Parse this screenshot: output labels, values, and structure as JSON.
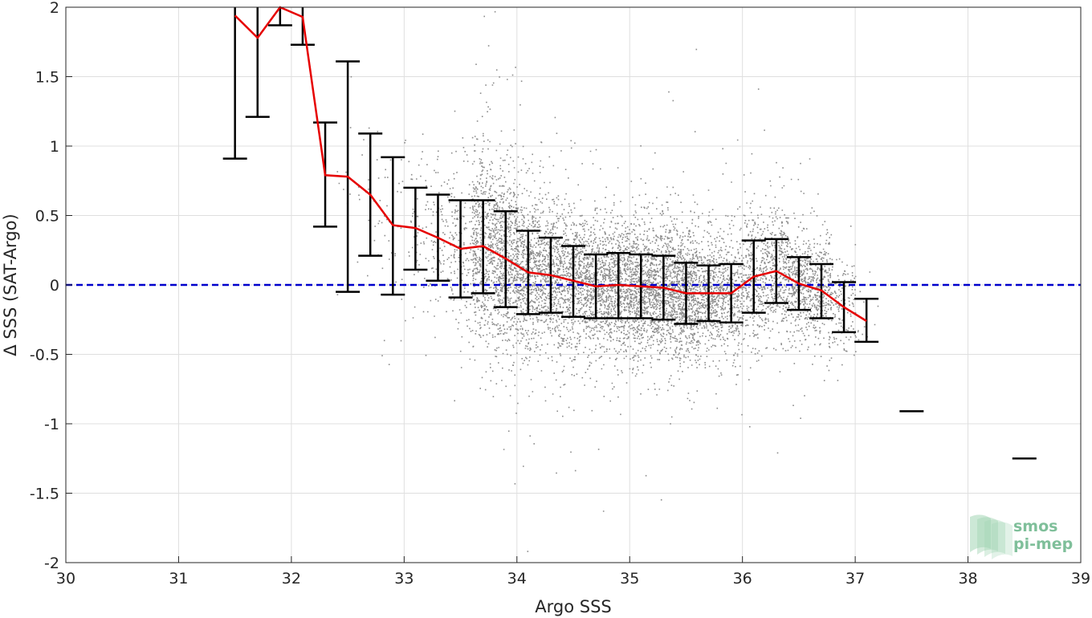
{
  "chart_data": {
    "type": "scatter",
    "xlabel": "Argo SSS",
    "ylabel": "Δ SSS (SAT-Argo)",
    "xlim": [
      30,
      39
    ],
    "ylim": [
      -2,
      2
    ],
    "xticks": [
      30,
      31,
      32,
      33,
      34,
      35,
      36,
      37,
      38,
      39
    ],
    "yticks": [
      -2,
      -1.5,
      -1,
      -0.5,
      0,
      0.5,
      1,
      1.5,
      2
    ],
    "xtick_labels": [
      "30",
      "31",
      "32",
      "33",
      "34",
      "35",
      "36",
      "37",
      "38",
      "39"
    ],
    "ytick_labels": [
      "-2",
      "-1.5",
      "-1",
      "-0.5",
      "0",
      "0.5",
      "1",
      "1.5",
      "2"
    ],
    "grid": true,
    "reference_line": {
      "y": 0,
      "style": "dashed",
      "color": "#0000cc"
    },
    "mean_line_color": "#e60000",
    "errorbar_color": "#000000",
    "scatter_color": "#8c8c8c",
    "bins": [
      {
        "x": 31.5,
        "mean": 1.94,
        "low": 0.91,
        "high": 2.0
      },
      {
        "x": 31.7,
        "mean": 1.78,
        "low": 1.21,
        "high": 2.0
      },
      {
        "x": 31.9,
        "mean": 2.0,
        "low": 1.87,
        "high": 2.0
      },
      {
        "x": 32.1,
        "mean": 1.93,
        "low": 1.73,
        "high": 2.0
      },
      {
        "x": 32.3,
        "mean": 0.79,
        "low": 0.42,
        "high": 1.17
      },
      {
        "x": 32.5,
        "mean": 0.78,
        "low": -0.05,
        "high": 1.61
      },
      {
        "x": 32.7,
        "mean": 0.65,
        "low": 0.21,
        "high": 1.09
      },
      {
        "x": 32.9,
        "mean": 0.43,
        "low": -0.07,
        "high": 0.92
      },
      {
        "x": 33.1,
        "mean": 0.41,
        "low": 0.11,
        "high": 0.7
      },
      {
        "x": 33.3,
        "mean": 0.34,
        "low": 0.03,
        "high": 0.65
      },
      {
        "x": 33.5,
        "mean": 0.26,
        "low": -0.09,
        "high": 0.61
      },
      {
        "x": 33.7,
        "mean": 0.28,
        "low": -0.06,
        "high": 0.61
      },
      {
        "x": 33.9,
        "mean": 0.19,
        "low": -0.16,
        "high": 0.53
      },
      {
        "x": 34.1,
        "mean": 0.09,
        "low": -0.21,
        "high": 0.39
      },
      {
        "x": 34.3,
        "mean": 0.07,
        "low": -0.2,
        "high": 0.34
      },
      {
        "x": 34.5,
        "mean": 0.03,
        "low": -0.23,
        "high": 0.28
      },
      {
        "x": 34.7,
        "mean": -0.01,
        "low": -0.24,
        "high": 0.22
      },
      {
        "x": 34.9,
        "mean": 0.0,
        "low": -0.24,
        "high": 0.23
      },
      {
        "x": 35.1,
        "mean": -0.01,
        "low": -0.24,
        "high": 0.22
      },
      {
        "x": 35.3,
        "mean": -0.02,
        "low": -0.25,
        "high": 0.21
      },
      {
        "x": 35.5,
        "mean": -0.06,
        "low": -0.28,
        "high": 0.16
      },
      {
        "x": 35.7,
        "mean": -0.06,
        "low": -0.26,
        "high": 0.14
      },
      {
        "x": 35.9,
        "mean": -0.06,
        "low": -0.27,
        "high": 0.15
      },
      {
        "x": 36.1,
        "mean": 0.06,
        "low": -0.2,
        "high": 0.32
      },
      {
        "x": 36.3,
        "mean": 0.1,
        "low": -0.13,
        "high": 0.33
      },
      {
        "x": 36.5,
        "mean": 0.01,
        "low": -0.18,
        "high": 0.2
      },
      {
        "x": 36.7,
        "mean": -0.04,
        "low": -0.24,
        "high": 0.15
      },
      {
        "x": 36.9,
        "mean": -0.16,
        "low": -0.34,
        "high": 0.02
      },
      {
        "x": 37.1,
        "mean": -0.26,
        "low": -0.41,
        "high": -0.1
      },
      {
        "x": 37.5,
        "mean": -0.91,
        "low": -0.91,
        "high": -0.91
      },
      {
        "x": 38.5,
        "mean": -1.25,
        "low": -1.25,
        "high": -1.25
      }
    ],
    "scatter_density": [
      {
        "x": 32.5,
        "n": 15,
        "mean": 0.9,
        "sd": 0.35
      },
      {
        "x": 32.7,
        "n": 20,
        "mean": 0.7,
        "sd": 0.3
      },
      {
        "x": 32.9,
        "n": 30,
        "mean": 0.5,
        "sd": 0.3
      },
      {
        "x": 33.1,
        "n": 60,
        "mean": 0.42,
        "sd": 0.28
      },
      {
        "x": 33.3,
        "n": 90,
        "mean": 0.35,
        "sd": 0.28
      },
      {
        "x": 33.5,
        "n": 160,
        "mean": 0.28,
        "sd": 0.28
      },
      {
        "x": 33.7,
        "n": 550,
        "mean": 0.3,
        "sd": 0.36
      },
      {
        "x": 33.9,
        "n": 620,
        "mean": 0.18,
        "sd": 0.35
      },
      {
        "x": 34.1,
        "n": 560,
        "mean": 0.09,
        "sd": 0.3
      },
      {
        "x": 34.3,
        "n": 520,
        "mean": 0.06,
        "sd": 0.28
      },
      {
        "x": 34.5,
        "n": 520,
        "mean": 0.03,
        "sd": 0.26
      },
      {
        "x": 34.7,
        "n": 560,
        "mean": 0.0,
        "sd": 0.24
      },
      {
        "x": 34.9,
        "n": 600,
        "mean": 0.0,
        "sd": 0.24
      },
      {
        "x": 35.1,
        "n": 620,
        "mean": -0.01,
        "sd": 0.24
      },
      {
        "x": 35.3,
        "n": 660,
        "mean": -0.02,
        "sd": 0.24
      },
      {
        "x": 35.5,
        "n": 660,
        "mean": -0.05,
        "sd": 0.23
      },
      {
        "x": 35.7,
        "n": 480,
        "mean": -0.05,
        "sd": 0.21
      },
      {
        "x": 35.9,
        "n": 360,
        "mean": -0.05,
        "sd": 0.22
      },
      {
        "x": 36.1,
        "n": 330,
        "mean": 0.06,
        "sd": 0.26
      },
      {
        "x": 36.3,
        "n": 360,
        "mean": 0.1,
        "sd": 0.24
      },
      {
        "x": 36.5,
        "n": 380,
        "mean": 0.01,
        "sd": 0.2
      },
      {
        "x": 36.7,
        "n": 300,
        "mean": -0.03,
        "sd": 0.2
      },
      {
        "x": 36.9,
        "n": 130,
        "mean": -0.15,
        "sd": 0.18
      },
      {
        "x": 37.1,
        "n": 12,
        "mean": -0.27,
        "sd": 0.16
      }
    ]
  },
  "logo": {
    "line1": "smos",
    "line2": "pi-mep",
    "text_color": "#7fbf9a",
    "mark_color": "#a3d5b5"
  }
}
